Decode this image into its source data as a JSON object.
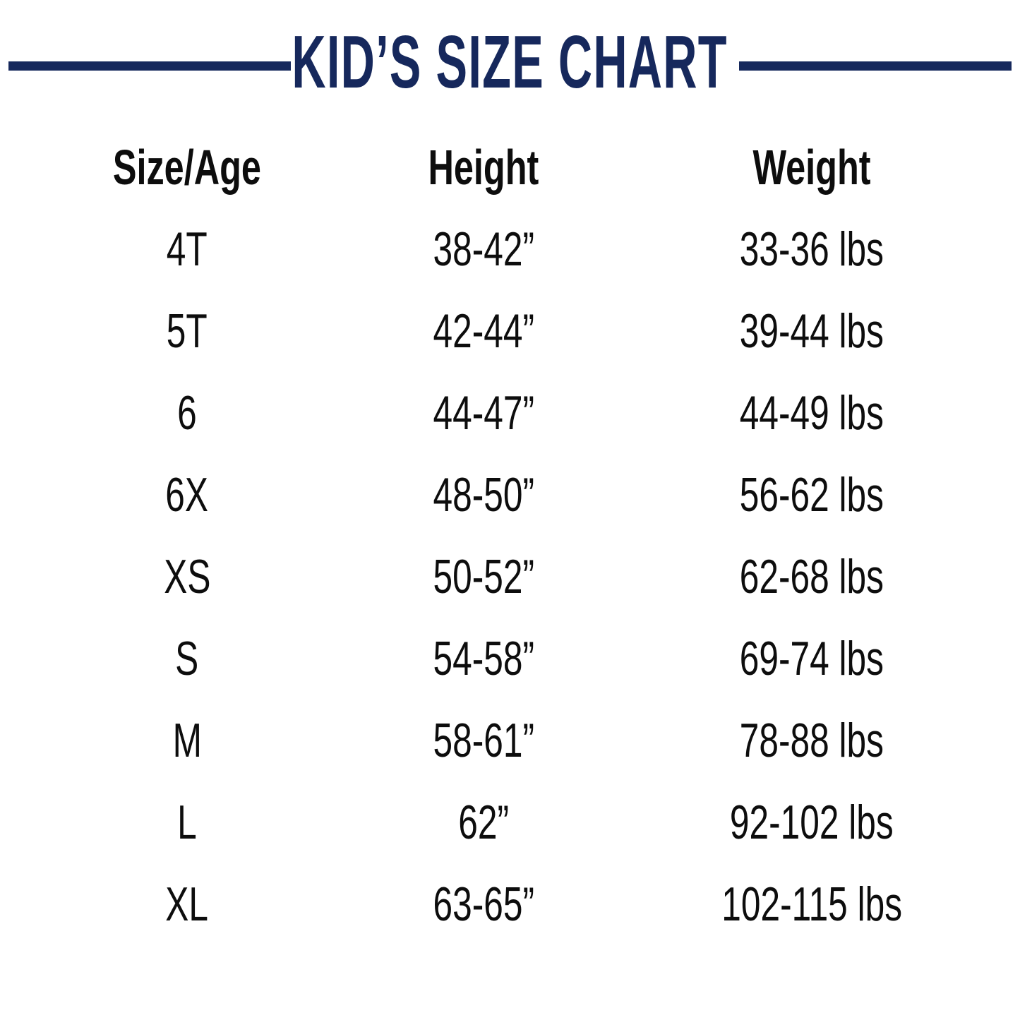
{
  "title": "KID’S SIZE CHART",
  "colors": {
    "navy": "#16285c",
    "text": "#0d0d0d"
  },
  "chart_data": {
    "type": "table",
    "title": "KID’S SIZE CHART",
    "columns": [
      "Size/Age",
      "Height",
      "Weight"
    ],
    "rows": [
      [
        "4T",
        "38-42”",
        "33-36 lbs"
      ],
      [
        "5T",
        "42-44”",
        "39-44 lbs"
      ],
      [
        "6",
        "44-47”",
        "44-49 lbs"
      ],
      [
        "6X",
        "48-50”",
        "56-62 lbs"
      ],
      [
        "XS",
        "50-52”",
        "62-68 lbs"
      ],
      [
        "S",
        "54-58”",
        "69-74 lbs"
      ],
      [
        "M",
        "58-61”",
        "78-88 lbs"
      ],
      [
        "L",
        "62”",
        "92-102 lbs"
      ],
      [
        "XL",
        "63-65”",
        "102-115 lbs"
      ]
    ],
    "layout": {
      "legend": "none",
      "grid": "off",
      "header_style": "bold",
      "alignment": "center"
    }
  }
}
